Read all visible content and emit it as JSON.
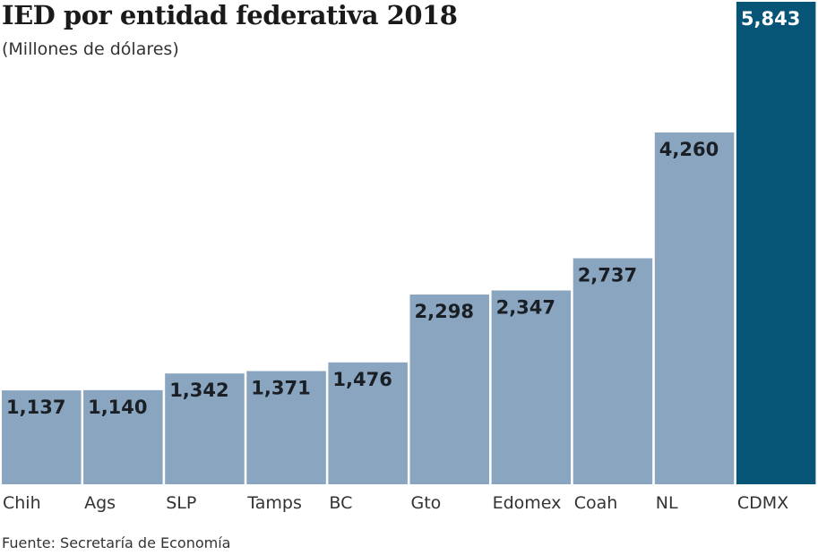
{
  "chart_data": {
    "type": "bar",
    "title": "IED por entidad federativa 2018",
    "subtitle": "(Millones de dólares)",
    "xlabel": "",
    "ylabel": "Millones de dólares",
    "categories": [
      "Chih",
      "Ags",
      "SLP",
      "Tamps",
      "BC",
      "Gto",
      "Edomex",
      "Coah",
      "NL",
      "CDMX"
    ],
    "values": [
      1137,
      1140,
      1342,
      1371,
      1476,
      2298,
      2347,
      2737,
      4260,
      5843
    ],
    "value_labels": [
      "1,137",
      "1,140",
      "1,342",
      "1,371",
      "1,476",
      "2,298",
      "2,347",
      "2,737",
      "4,260",
      "5,843"
    ],
    "highlight": "CDMX",
    "ylim": [
      0,
      5843
    ],
    "grid": false,
    "legend": "none",
    "source": "Fuente: Secretaría de Economía"
  },
  "colors": {
    "bar": "#8aa5bf",
    "highlight_bar": "#065576",
    "label_dark": "#1a1f26",
    "label_light": "#ffffff"
  }
}
